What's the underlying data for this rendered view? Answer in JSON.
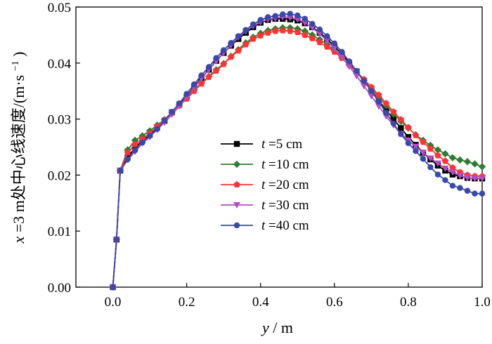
{
  "chart_data": {
    "type": "line",
    "title": "",
    "xlabel": {
      "var": "y",
      "unit": "m"
    },
    "ylabel": {
      "var": "x",
      "text": "=3 m处中心线速度/(m·s",
      "sup": "−1",
      "close": ")"
    },
    "xlim": [
      -0.1,
      1.0
    ],
    "ylim": [
      0.0,
      0.05
    ],
    "xticks": [
      0.0,
      0.2,
      0.4,
      0.6,
      0.8,
      1.0
    ],
    "xtick_labels": [
      "0.0",
      "0.2",
      "0.4",
      "0.6",
      "0.8",
      "1.0"
    ],
    "yticks": [
      0.0,
      0.01,
      0.02,
      0.03,
      0.04,
      0.05
    ],
    "ytick_labels": [
      "0.00",
      "0.01",
      "0.02",
      "0.03",
      "0.04",
      "0.05"
    ],
    "legend_position": "center-right",
    "x": [
      0,
      0.01,
      0.02,
      0.04,
      0.06,
      0.08,
      0.1,
      0.12,
      0.14,
      0.16,
      0.18,
      0.2,
      0.22,
      0.24,
      0.26,
      0.28,
      0.3,
      0.32,
      0.34,
      0.36,
      0.38,
      0.4,
      0.42,
      0.44,
      0.46,
      0.48,
      0.5,
      0.52,
      0.54,
      0.56,
      0.58,
      0.6,
      0.62,
      0.64,
      0.66,
      0.68,
      0.7,
      0.72,
      0.74,
      0.76,
      0.78,
      0.8,
      0.82,
      0.84,
      0.86,
      0.88,
      0.9,
      0.92,
      0.94,
      0.96,
      0.98,
      1.0
    ],
    "series": [
      {
        "name": "t =5 cm",
        "var": "t",
        "label": " =5 cm",
        "color": "#000000",
        "marker": "square",
        "values": [
          0,
          0.0085,
          0.0208,
          0.0232,
          0.0248,
          0.0262,
          0.0272,
          0.0285,
          0.0297,
          0.0312,
          0.0326,
          0.034,
          0.0358,
          0.0373,
          0.0388,
          0.0404,
          0.0418,
          0.0431,
          0.0443,
          0.0454,
          0.0464,
          0.0472,
          0.0477,
          0.0479,
          0.0479,
          0.0478,
          0.0476,
          0.0471,
          0.0464,
          0.0454,
          0.0443,
          0.043,
          0.0416,
          0.04,
          0.0385,
          0.0368,
          0.0351,
          0.0333,
          0.0316,
          0.03,
          0.0284,
          0.0268,
          0.0254,
          0.024,
          0.0228,
          0.0217,
          0.0208,
          0.0201,
          0.0198,
          0.0195,
          0.0194,
          0.0194
        ]
      },
      {
        "name": "t =10 cm",
        "var": "t",
        "label": " =10 cm",
        "color": "#2e7d32",
        "marker": "diamond",
        "values": [
          0,
          0.0085,
          0.0208,
          0.0245,
          0.0262,
          0.027,
          0.0279,
          0.0289,
          0.0299,
          0.0312,
          0.0325,
          0.0338,
          0.0352,
          0.0364,
          0.0376,
          0.0388,
          0.0399,
          0.0412,
          0.0424,
          0.0436,
          0.0446,
          0.0453,
          0.0458,
          0.0461,
          0.0463,
          0.0463,
          0.0461,
          0.0457,
          0.045,
          0.0442,
          0.0433,
          0.0422,
          0.041,
          0.0397,
          0.0383,
          0.0369,
          0.0354,
          0.0339,
          0.0324,
          0.0309,
          0.0296,
          0.0284,
          0.0272,
          0.0262,
          0.0253,
          0.0245,
          0.0238,
          0.0231,
          0.0227,
          0.0224,
          0.022,
          0.0215
        ]
      },
      {
        "name": "t =20 cm",
        "var": "t",
        "label": " =20 cm",
        "color": "#ff3333",
        "marker": "pentagon",
        "values": [
          0,
          0.0085,
          0.0208,
          0.024,
          0.0255,
          0.0264,
          0.0274,
          0.0287,
          0.0298,
          0.0311,
          0.0324,
          0.0336,
          0.035,
          0.0363,
          0.0375,
          0.0386,
          0.0398,
          0.0411,
          0.0422,
          0.0433,
          0.0443,
          0.0449,
          0.0454,
          0.0457,
          0.0458,
          0.0457,
          0.0455,
          0.045,
          0.0444,
          0.0437,
          0.0429,
          0.042,
          0.0409,
          0.0397,
          0.0384,
          0.0371,
          0.0357,
          0.0343,
          0.0328,
          0.0313,
          0.0299,
          0.0285,
          0.0271,
          0.0259,
          0.0247,
          0.0235,
          0.0225,
          0.0213,
          0.0205,
          0.02,
          0.0198,
          0.0198
        ]
      },
      {
        "name": "t =30 cm",
        "var": "t",
        "label": " =30 cm",
        "color": "#b24ec4",
        "marker": "triangle-down",
        "values": [
          0,
          0.0085,
          0.0208,
          0.0227,
          0.0242,
          0.0257,
          0.0268,
          0.0281,
          0.0294,
          0.0308,
          0.0323,
          0.0339,
          0.0356,
          0.0372,
          0.0388,
          0.0403,
          0.0418,
          0.0432,
          0.0446,
          0.0457,
          0.0466,
          0.0473,
          0.0478,
          0.048,
          0.0482,
          0.0481,
          0.0478,
          0.0472,
          0.0463,
          0.0452,
          0.044,
          0.0426,
          0.0411,
          0.0394,
          0.0377,
          0.0359,
          0.0341,
          0.0323,
          0.0305,
          0.0289,
          0.0274,
          0.0262,
          0.0251,
          0.024,
          0.023,
          0.0221,
          0.0212,
          0.0205,
          0.0199,
          0.0195,
          0.0194,
          0.0194
        ]
      },
      {
        "name": "t =40 cm",
        "var": "t",
        "label": " =40 cm",
        "color": "#3949ab",
        "marker": "circle",
        "values": [
          0,
          0.0085,
          0.0208,
          0.0228,
          0.0244,
          0.0258,
          0.027,
          0.0282,
          0.0297,
          0.0313,
          0.0328,
          0.0345,
          0.0362,
          0.0378,
          0.0393,
          0.0409,
          0.0423,
          0.0436,
          0.0448,
          0.0459,
          0.0469,
          0.0477,
          0.0482,
          0.0484,
          0.0487,
          0.0488,
          0.0485,
          0.0479,
          0.047,
          0.046,
          0.0448,
          0.0435,
          0.042,
          0.0403,
          0.0386,
          0.0368,
          0.035,
          0.0331,
          0.0311,
          0.0292,
          0.0273,
          0.0257,
          0.0243,
          0.0229,
          0.0214,
          0.0201,
          0.0191,
          0.0181,
          0.0177,
          0.0172,
          0.0167,
          0.0167
        ]
      }
    ]
  }
}
